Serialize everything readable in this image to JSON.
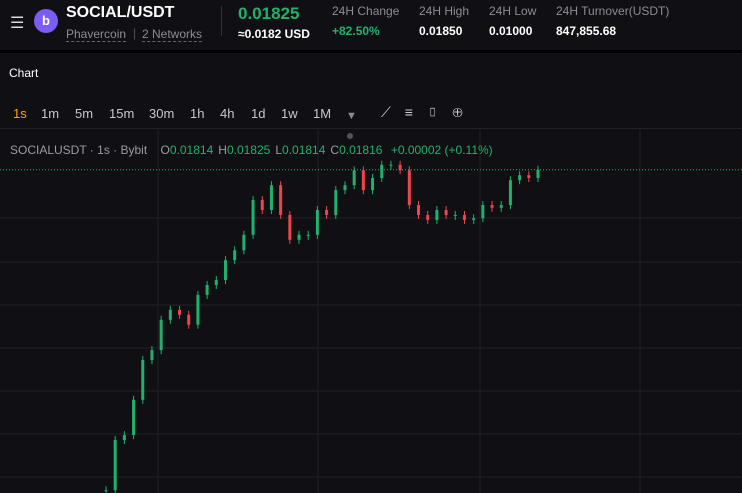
{
  "header": {
    "pair": "SOCIAL/USDT",
    "project": "Phavercoin",
    "networks": "2 Networks",
    "price": "0.01825",
    "price_usd": "≈0.0182 USD",
    "stats": [
      {
        "label": "24H Change",
        "value": "+82.50%"
      },
      {
        "label": "24H High",
        "value": "0.01850"
      },
      {
        "label": "24H Low",
        "value": "0.01000"
      },
      {
        "label": "24H Turnover(USDT)",
        "value": "847,855.68"
      }
    ]
  },
  "section": {
    "title": "Chart"
  },
  "toolbar": {
    "intervals": [
      "1s",
      "1m",
      "5m",
      "15m",
      "30m",
      "1h",
      "4h",
      "1d",
      "1w",
      "1M"
    ]
  },
  "legend": {
    "symbol": "SOCIALUSDT",
    "interval": "1s",
    "exchange": "Bybit",
    "ohlc": [
      {
        "key": "O",
        "value": "0.01814"
      },
      {
        "key": "H",
        "value": "0.01825"
      },
      {
        "key": "L",
        "value": "0.01814"
      },
      {
        "key": "C",
        "value": "0.01816"
      }
    ],
    "change": "+0.00002 (+0.11%)"
  },
  "chart": {
    "type": "candlestick",
    "ylim": [
      0.0123,
      0.0183
    ],
    "closes": [
      0.01235,
      0.01326,
      0.01335,
      0.01399,
      0.01471,
      0.01489,
      0.01544,
      0.01562,
      0.01553,
      0.01535,
      0.01589,
      0.01607,
      0.01616,
      0.01652,
      0.0167,
      0.01698,
      0.01761,
      0.01743,
      0.01788,
      0.01734,
      0.01689,
      0.01698,
      0.01698,
      0.01743,
      0.01734,
      0.01779,
      0.01788,
      0.01815,
      0.01779,
      0.01801,
      0.01825,
      0.01825,
      0.01815,
      0.01752,
      0.01734,
      0.01725,
      0.01743,
      0.01734,
      0.01734,
      0.01725,
      0.01728,
      0.01752,
      0.01747,
      0.01752,
      0.01797,
      0.01806,
      0.01801,
      0.01816
    ]
  }
}
